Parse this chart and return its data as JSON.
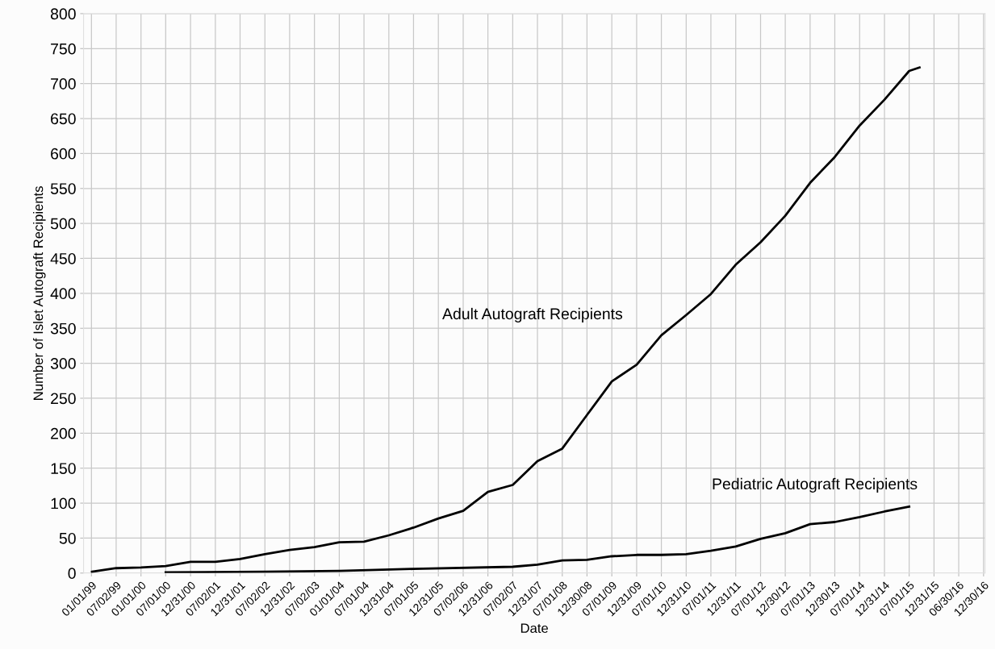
{
  "chart_data": {
    "type": "line",
    "xlabel": "Date",
    "ylabel": "Number of Islet Autograft Recipients",
    "xlim": [
      "1998-11-04",
      "2017-01-10"
    ],
    "ylim": [
      0,
      800
    ],
    "yticks": [
      0,
      50,
      100,
      150,
      200,
      250,
      300,
      350,
      400,
      450,
      500,
      550,
      600,
      650,
      700,
      750,
      800
    ],
    "xticks": [
      {
        "value": "1999-01-01",
        "label": "01/01/99"
      },
      {
        "value": "1999-07-02",
        "label": "07/02/99"
      },
      {
        "value": "2000-01-01",
        "label": "01/01/00"
      },
      {
        "value": "2000-07-01",
        "label": "07/01/00"
      },
      {
        "value": "2000-12-31",
        "label": "12/31/00"
      },
      {
        "value": "2001-07-02",
        "label": "07/02/01"
      },
      {
        "value": "2001-12-31",
        "label": "12/31/01"
      },
      {
        "value": "2002-07-02",
        "label": "07/02/02"
      },
      {
        "value": "2002-12-31",
        "label": "12/31/02"
      },
      {
        "value": "2003-07-02",
        "label": "07/02/03"
      },
      {
        "value": "2004-01-01",
        "label": "01/01/04"
      },
      {
        "value": "2004-07-01",
        "label": "07/01/04"
      },
      {
        "value": "2004-12-31",
        "label": "12/31/04"
      },
      {
        "value": "2005-07-01",
        "label": "07/01/05"
      },
      {
        "value": "2005-12-31",
        "label": "12/31/05"
      },
      {
        "value": "2006-07-02",
        "label": "07/02/06"
      },
      {
        "value": "2006-12-31",
        "label": "12/31/06"
      },
      {
        "value": "2007-07-02",
        "label": "07/02/07"
      },
      {
        "value": "2007-12-31",
        "label": "12/31/07"
      },
      {
        "value": "2008-07-01",
        "label": "07/01/08"
      },
      {
        "value": "2008-12-30",
        "label": "12/30/08"
      },
      {
        "value": "2009-07-01",
        "label": "07/01/09"
      },
      {
        "value": "2009-12-31",
        "label": "12/31/09"
      },
      {
        "value": "2010-07-01",
        "label": "07/01/10"
      },
      {
        "value": "2010-12-31",
        "label": "12/31/10"
      },
      {
        "value": "2011-07-01",
        "label": "07/01/11"
      },
      {
        "value": "2011-12-31",
        "label": "12/31/11"
      },
      {
        "value": "2012-07-01",
        "label": "07/01/12"
      },
      {
        "value": "2012-12-30",
        "label": "12/30/12"
      },
      {
        "value": "2013-07-01",
        "label": "07/01/13"
      },
      {
        "value": "2013-12-30",
        "label": "12/30/13"
      },
      {
        "value": "2014-07-01",
        "label": "07/01/14"
      },
      {
        "value": "2014-12-31",
        "label": "12/31/14"
      },
      {
        "value": "2015-07-01",
        "label": "07/01/15"
      },
      {
        "value": "2015-12-31",
        "label": "12/31/15"
      },
      {
        "value": "2016-06-30",
        "label": "06/30/16"
      },
      {
        "value": "2016-12-30",
        "label": "12/30/16"
      }
    ],
    "grid": true,
    "legend": false,
    "marker": "none",
    "line_style": "solid",
    "series": [
      {
        "name": "Adult Autograft Recipients",
        "color": "#000000",
        "x": [
          "1999-01-05",
          "1999-07-02",
          "2000-01-01",
          "2000-07-01",
          "2000-12-31",
          "2001-07-02",
          "2001-12-31",
          "2002-07-02",
          "2002-12-31",
          "2003-07-02",
          "2004-01-01",
          "2004-07-01",
          "2004-12-31",
          "2005-07-01",
          "2005-12-31",
          "2006-07-02",
          "2006-12-31",
          "2007-07-02",
          "2007-12-31",
          "2008-07-01",
          "2008-12-30",
          "2009-07-01",
          "2009-12-31",
          "2010-07-01",
          "2010-12-31",
          "2011-07-01",
          "2011-12-31",
          "2012-07-01",
          "2012-12-30",
          "2013-07-01",
          "2013-12-30",
          "2014-07-01",
          "2014-12-31",
          "2015-07-01",
          "2015-09-15"
        ],
        "values": [
          2,
          7,
          8,
          10,
          16,
          16,
          20,
          27,
          33,
          37,
          44,
          45,
          54,
          65,
          78,
          89,
          116,
          126,
          160,
          178,
          226,
          274,
          298,
          340,
          369,
          399,
          441,
          473,
          511,
          558,
          595,
          640,
          677,
          718,
          723
        ]
      },
      {
        "name": "Pediatric Autograft Recipients",
        "color": "#000000",
        "x": [
          "2000-07-01",
          "2002-07-02",
          "2004-01-01",
          "2005-07-01",
          "2007-07-02",
          "2007-12-31",
          "2008-07-01",
          "2008-12-30",
          "2009-07-01",
          "2009-12-31",
          "2010-07-01",
          "2010-12-31",
          "2011-07-01",
          "2011-12-31",
          "2012-07-01",
          "2012-12-30",
          "2013-07-01",
          "2013-12-30",
          "2014-07-01",
          "2014-12-31",
          "2015-07-01"
        ],
        "values": [
          1,
          2,
          3,
          6,
          9,
          12,
          18,
          19,
          24,
          26,
          26,
          27,
          32,
          38,
          49,
          57,
          70,
          73,
          80,
          88,
          95
        ]
      }
    ]
  }
}
